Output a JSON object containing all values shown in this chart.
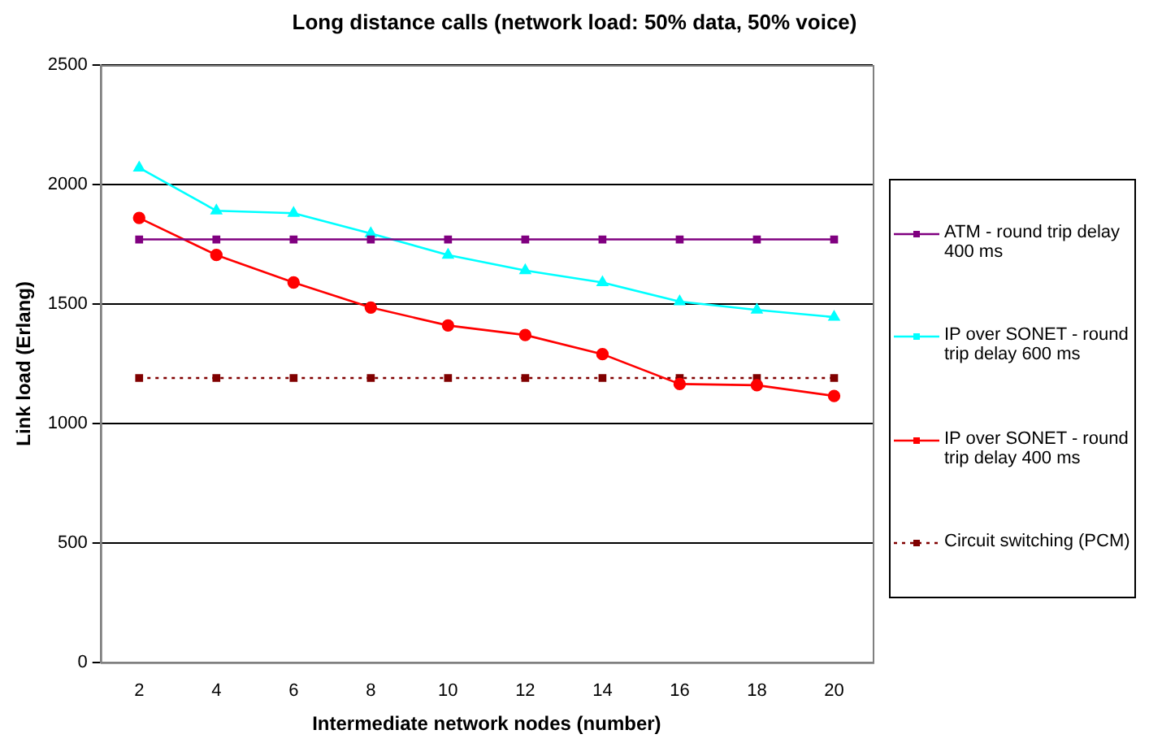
{
  "chart_data": {
    "type": "line",
    "title": "Long distance calls (network load: 50% data, 50% voice)",
    "xlabel": "Intermediate network nodes (number)",
    "ylabel": "Link load (Erlang)",
    "categories": [
      "2",
      "4",
      "6",
      "8",
      "10",
      "12",
      "14",
      "16",
      "18",
      "20"
    ],
    "series": [
      {
        "name": "ATM -  round trip delay 400 ms",
        "color": "#800080",
        "marker": "square",
        "values": [
          1770,
          1770,
          1770,
          1770,
          1770,
          1770,
          1770,
          1770,
          1770,
          1770
        ]
      },
      {
        "name": "IP over SONET - round trip delay 600 ms",
        "color": "#00ffff",
        "marker": "triangle",
        "values": [
          2070,
          1890,
          1880,
          1795,
          1705,
          1640,
          1590,
          1510,
          1475,
          1445
        ]
      },
      {
        "name": "IP over SONET - round trip delay 400 ms",
        "color": "#ff0000",
        "marker": "circle",
        "values": [
          1860,
          1705,
          1590,
          1485,
          1410,
          1370,
          1290,
          1165,
          1160,
          1115
        ]
      },
      {
        "name": "Circuit switching (PCM)",
        "color": "#800000",
        "marker": "square",
        "line_style": "dotted",
        "values": [
          1190,
          1190,
          1190,
          1190,
          1190,
          1190,
          1190,
          1190,
          1190,
          1190
        ]
      }
    ],
    "ylim": [
      0,
      2500
    ],
    "yticks": [
      0,
      500,
      1000,
      1500,
      2000,
      2500
    ],
    "grid": "y",
    "legend": "right"
  }
}
